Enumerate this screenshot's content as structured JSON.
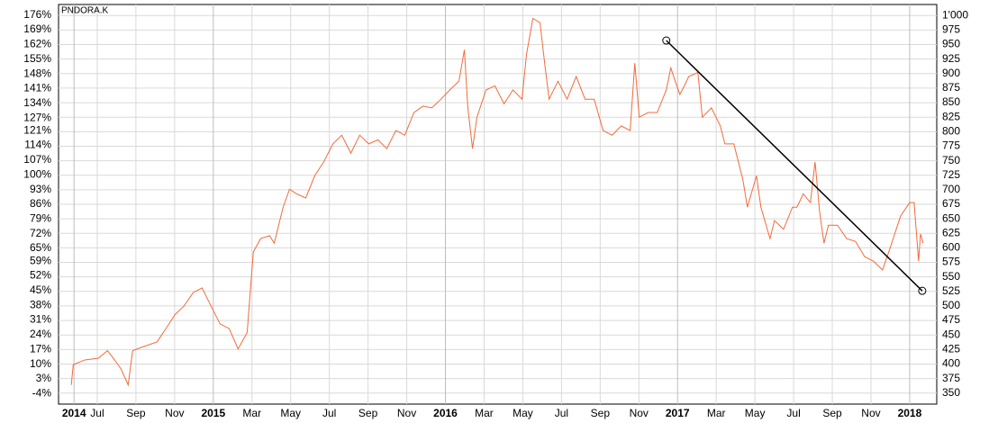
{
  "chart_data": {
    "type": "line",
    "x": [
      4.66,
      4.76,
      5.36,
      6.06,
      6.53,
      6.9,
      7.22,
      7.6,
      7.83,
      8.39,
      9.09,
      9.55,
      10.02,
      10.49,
      10.96,
      11.42,
      11.88,
      12.35,
      12.82,
      13.28,
      13.75,
      14.07,
      14.45,
      14.91,
      15.15,
      15.61,
      15.94,
      16.31,
      16.78,
      17.24,
      17.71,
      18.18,
      18.64,
      19.11,
      19.57,
      20.04,
      20.51,
      20.97,
      21.44,
      21.9,
      22.37,
      22.84,
      23.3,
      23.77,
      24.23,
      24.7,
      24.98,
      25.16,
      25.4,
      25.63,
      26.1,
      26.56,
      27.03,
      27.49,
      27.96,
      28.19,
      28.52,
      28.89,
      29.13,
      29.36,
      29.82,
      30.29,
      30.76,
      31.22,
      31.69,
      32.15,
      32.62,
      33.09,
      33.55,
      33.79,
      34.02,
      34.48,
      34.95,
      35.42,
      35.65,
      35.88,
      36.12,
      36.35,
      36.58,
      37.05,
      37.28,
      37.75,
      38.21,
      38.45,
      38.91,
      39.38,
      39.61,
      40.08,
      40.31,
      40.78,
      41.01,
      41.48,
      41.94,
      42.17,
      42.5,
      42.87,
      43.11,
      43.34,
      43.57,
      43.8,
      44.27,
      44.74,
      45.2,
      45.67,
      46.13,
      46.6,
      47.07,
      47.53,
      48.0,
      48.23,
      48.46,
      48.56,
      48.7
    ],
    "series": [
      {
        "name": "PNDORA.K",
        "color": "#f26b3a",
        "axis": "y2",
        "values": [
          364,
          399,
          407,
          410,
          423,
          407,
          392,
          364,
          423,
          430,
          438,
          461,
          485,
          500,
          523,
          531,
          500,
          469,
          461,
          426,
          454,
          593,
          616,
          621,
          608,
          670,
          701,
          693,
          686,
          724,
          748,
          779,
          794,
          763,
          794,
          779,
          786,
          771,
          802,
          794,
          833,
          844,
          841,
          856,
          872,
          887,
          941,
          841,
          771,
          825,
          872,
          879,
          848,
          872,
          856,
          933,
          995,
          988,
          918,
          856,
          887,
          856,
          895,
          856,
          856,
          802,
          794,
          810,
          802,
          918,
          825,
          833,
          833,
          872,
          910,
          887,
          864,
          879,
          895,
          902,
          825,
          841,
          810,
          779,
          779,
          717,
          670,
          724,
          670,
          616,
          647,
          632,
          670,
          670,
          693,
          678,
          748,
          663,
          608,
          639,
          639,
          616,
          611,
          585,
          577,
          562,
          608,
          655,
          678,
          678,
          577,
          624,
          608
        ]
      }
    ],
    "trendline": {
      "color": "#000000",
      "x": [
        35.42,
        48.65
      ],
      "values": [
        957,
        526
      ]
    },
    "xlim": [
      4,
      49.4
    ],
    "xticks": [
      {
        "value": 4.8,
        "label": "2014"
      },
      {
        "value": 6,
        "label": "Jul"
      },
      {
        "value": 8,
        "label": "Sep"
      },
      {
        "value": 10,
        "label": "Nov"
      },
      {
        "value": 12,
        "label": "2015"
      },
      {
        "value": 14,
        "label": "Mar"
      },
      {
        "value": 16,
        "label": "May"
      },
      {
        "value": 18,
        "label": "Jul"
      },
      {
        "value": 20,
        "label": "Sep"
      },
      {
        "value": 22,
        "label": "Nov"
      },
      {
        "value": 24,
        "label": "2016"
      },
      {
        "value": 26,
        "label": "Mar"
      },
      {
        "value": 28,
        "label": "May"
      },
      {
        "value": 30,
        "label": "Jul"
      },
      {
        "value": 32,
        "label": "Sep"
      },
      {
        "value": 34,
        "label": "Nov"
      },
      {
        "value": 36,
        "label": "2017"
      },
      {
        "value": 38,
        "label": "Mar"
      },
      {
        "value": 40,
        "label": "May"
      },
      {
        "value": 42,
        "label": "Jul"
      },
      {
        "value": 44,
        "label": "Sep"
      },
      {
        "value": 46,
        "label": "Nov"
      },
      {
        "value": 48,
        "label": "2018"
      }
    ],
    "ylim": [
      -9,
      181
    ],
    "yticks": [
      {
        "value": 176,
        "label": "176%"
      },
      {
        "value": 169,
        "label": "169%"
      },
      {
        "value": 162,
        "label": "162%"
      },
      {
        "value": 155,
        "label": "155%"
      },
      {
        "value": 148,
        "label": "148%"
      },
      {
        "value": 141,
        "label": "141%"
      },
      {
        "value": 134,
        "label": "134%"
      },
      {
        "value": 127,
        "label": "127%"
      },
      {
        "value": 121,
        "label": "121%"
      },
      {
        "value": 114,
        "label": "114%"
      },
      {
        "value": 107,
        "label": "107%"
      },
      {
        "value": 100,
        "label": "100%"
      },
      {
        "value": 93,
        "label": "93%"
      },
      {
        "value": 86,
        "label": "86%"
      },
      {
        "value": 79,
        "label": "79%"
      },
      {
        "value": 72,
        "label": "72%"
      },
      {
        "value": 65,
        "label": "65%"
      },
      {
        "value": 59,
        "label": "59%"
      },
      {
        "value": 52,
        "label": "52%"
      },
      {
        "value": 45,
        "label": "45%"
      },
      {
        "value": 38,
        "label": "38%"
      },
      {
        "value": 31,
        "label": "31%"
      },
      {
        "value": 24,
        "label": "24%"
      },
      {
        "value": 17,
        "label": "17%"
      },
      {
        "value": 10,
        "label": "10%"
      },
      {
        "value": 3,
        "label": "3%"
      },
      {
        "value": -4,
        "label": "-4%"
      }
    ],
    "y2lim": [
      331,
      1019
    ],
    "y2ticks": [
      {
        "value": 1000,
        "label": "1'000"
      },
      975,
      950,
      925,
      900,
      875,
      850,
      825,
      800,
      775,
      750,
      725,
      700,
      675,
      650,
      625,
      600,
      575,
      550,
      525,
      500,
      475,
      450,
      425,
      400,
      375,
      350
    ],
    "grid": true
  }
}
